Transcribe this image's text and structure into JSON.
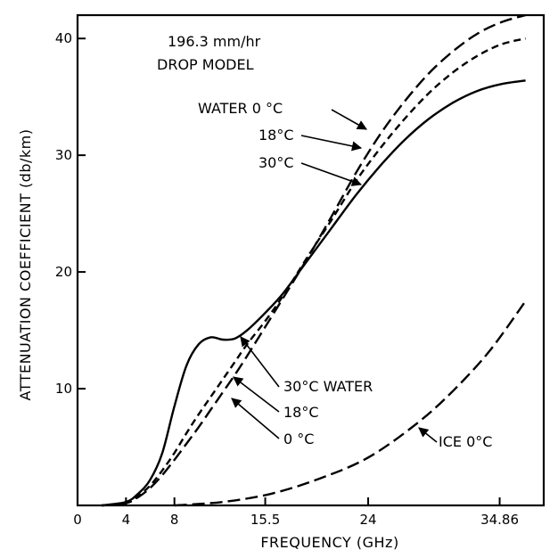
{
  "chart_data": {
    "type": "line",
    "title": "196.3 mm/hr",
    "subtitle": "DROP MODEL",
    "xlabel": "FREQUENCY (GHz)",
    "ylabel": "ATTENUATION COEFFICIENT (db/km)",
    "xlim": [
      0,
      38.5
    ],
    "ylim": [
      0,
      42
    ],
    "xticks": [
      0,
      4,
      8,
      15.5,
      24,
      34.86
    ],
    "xtick_labels": [
      "0",
      "4",
      "8",
      "15.5",
      "24",
      "34.86"
    ],
    "yticks": [
      0,
      10,
      20,
      30,
      40
    ],
    "ytick_labels": [
      "",
      "10",
      "20",
      "30",
      "40"
    ],
    "grid": false,
    "series": [
      {
        "name": "WATER 0 °C",
        "style": "long-dash",
        "x": [
          2,
          4,
          5,
          6,
          7,
          8,
          9,
          10,
          11,
          12,
          13,
          14,
          15.5,
          17,
          19,
          21,
          23,
          25,
          27,
          29,
          31,
          33,
          35,
          37
        ],
        "y": [
          0,
          0.2,
          0.7,
          1.5,
          2.6,
          3.9,
          5.3,
          6.7,
          8.2,
          9.7,
          11.2,
          12.8,
          15.3,
          17.8,
          21.2,
          24.8,
          28.5,
          31.8,
          34.6,
          37,
          38.9,
          40.4,
          41.4,
          42
        ]
      },
      {
        "name": "18°C",
        "style": "short-dash",
        "x": [
          2,
          4,
          5,
          6,
          7,
          8,
          9,
          10,
          11,
          12,
          13,
          14,
          15.5,
          17,
          19,
          21,
          23,
          25,
          27,
          29,
          31,
          33,
          35,
          37
        ],
        "y": [
          0,
          0.2,
          0.8,
          1.7,
          3,
          4.5,
          6.2,
          7.8,
          9.3,
          10.8,
          12.3,
          13.8,
          15.8,
          18,
          21.3,
          24.5,
          27.8,
          30.6,
          33.1,
          35.3,
          37.1,
          38.5,
          39.5,
          40
        ]
      },
      {
        "name": "30°C WATER",
        "style": "solid",
        "x": [
          2,
          4,
          5,
          6,
          7,
          8,
          9,
          10,
          11,
          12,
          13,
          14,
          15.5,
          17,
          19,
          21,
          23,
          25,
          27,
          29,
          31,
          33,
          35,
          37
        ],
        "y": [
          0,
          0.3,
          1,
          2.2,
          4.5,
          8.5,
          12,
          13.8,
          14.4,
          14.2,
          14.3,
          15,
          16.5,
          18.2,
          21,
          23.8,
          26.6,
          29.1,
          31.3,
          33.1,
          34.5,
          35.5,
          36.1,
          36.4
        ]
      },
      {
        "name": "ICE 0°C",
        "style": "long-dash",
        "x": [
          8,
          12,
          16,
          20,
          24,
          28,
          31,
          34,
          37
        ],
        "y": [
          0,
          0.3,
          1,
          2.3,
          4.1,
          7,
          9.8,
          13.2,
          17.5
        ]
      }
    ],
    "annotations": [
      {
        "text": "WATER 0 °C",
        "x": 24,
        "y": 30.8
      },
      {
        "text": "18°C",
        "x": 23.6,
        "y": 29.3
      },
      {
        "text": "30°C",
        "x": 23.4,
        "y": 27.5
      },
      {
        "text": "30°C WATER",
        "x": 11.5,
        "y": 14.4
      },
      {
        "text": "18°C",
        "x": 12.8,
        "y": 11.5
      },
      {
        "text": "0 °C",
        "x": 13.2,
        "y": 9.3
      },
      {
        "text": "ICE 0°C",
        "x": 28,
        "y": 7.3
      }
    ]
  }
}
